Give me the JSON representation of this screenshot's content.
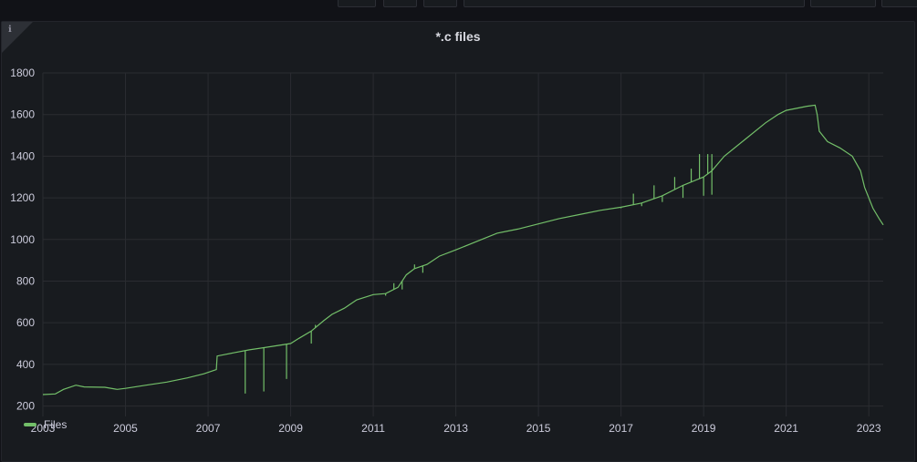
{
  "panel": {
    "info_icon": "info-icon",
    "title": "*.c files"
  },
  "legend": {
    "label": "Files",
    "color": "#73bf69"
  },
  "chart_data": {
    "type": "line",
    "title": "*.c files",
    "xlabel": "",
    "ylabel": "",
    "xlim": [
      2003.0,
      2023.35
    ],
    "ylim": [
      150,
      1800
    ],
    "grid": true,
    "legend_position": "bottom-left",
    "x_ticks": [
      "2003",
      "2005",
      "2007",
      "2009",
      "2011",
      "2013",
      "2015",
      "2017",
      "2019",
      "2021",
      "2023"
    ],
    "y_ticks": [
      "200",
      "400",
      "600",
      "800",
      "1000",
      "1200",
      "1400",
      "1600",
      "1800"
    ],
    "series": [
      {
        "name": "Files",
        "color": "#73bf69",
        "points": [
          [
            2003.0,
            255
          ],
          [
            2003.3,
            258
          ],
          [
            2003.5,
            280
          ],
          [
            2003.8,
            300
          ],
          [
            2004.0,
            292
          ],
          [
            2004.5,
            290
          ],
          [
            2004.8,
            280
          ],
          [
            2005.0,
            285
          ],
          [
            2005.5,
            300
          ],
          [
            2006.0,
            315
          ],
          [
            2006.5,
            335
          ],
          [
            2006.9,
            355
          ],
          [
            2007.2,
            375
          ],
          [
            2007.22,
            440
          ],
          [
            2007.6,
            455
          ],
          [
            2008.0,
            470
          ],
          [
            2008.5,
            485
          ],
          [
            2009.0,
            500
          ],
          [
            2009.2,
            525
          ],
          [
            2009.5,
            560
          ],
          [
            2009.8,
            610
          ],
          [
            2010.0,
            640
          ],
          [
            2010.3,
            670
          ],
          [
            2010.6,
            710
          ],
          [
            2011.0,
            735
          ],
          [
            2011.3,
            740
          ],
          [
            2011.6,
            770
          ],
          [
            2011.8,
            830
          ],
          [
            2012.0,
            860
          ],
          [
            2012.3,
            880
          ],
          [
            2012.6,
            920
          ],
          [
            2013.0,
            950
          ],
          [
            2013.5,
            990
          ],
          [
            2014.0,
            1030
          ],
          [
            2014.5,
            1050
          ],
          [
            2015.0,
            1075
          ],
          [
            2015.5,
            1100
          ],
          [
            2016.0,
            1120
          ],
          [
            2016.5,
            1140
          ],
          [
            2017.0,
            1155
          ],
          [
            2017.5,
            1175
          ],
          [
            2018.0,
            1210
          ],
          [
            2018.5,
            1260
          ],
          [
            2019.0,
            1300
          ],
          [
            2019.2,
            1330
          ],
          [
            2019.5,
            1400
          ],
          [
            2020.0,
            1480
          ],
          [
            2020.5,
            1560
          ],
          [
            2020.8,
            1600
          ],
          [
            2021.0,
            1620
          ],
          [
            2021.5,
            1640
          ],
          [
            2021.7,
            1645
          ],
          [
            2021.75,
            1600
          ],
          [
            2021.8,
            1520
          ],
          [
            2022.0,
            1470
          ],
          [
            2022.3,
            1440
          ],
          [
            2022.6,
            1400
          ],
          [
            2022.8,
            1330
          ],
          [
            2022.9,
            1250
          ],
          [
            2023.1,
            1150
          ],
          [
            2023.25,
            1100
          ],
          [
            2023.35,
            1070
          ]
        ],
        "dips": [
          [
            2007.9,
            260
          ],
          [
            2008.35,
            270
          ],
          [
            2008.9,
            330
          ],
          [
            2009.5,
            500
          ],
          [
            2011.3,
            730
          ],
          [
            2011.7,
            760
          ],
          [
            2012.2,
            840
          ],
          [
            2017.0,
            1150
          ],
          [
            2017.5,
            1160
          ],
          [
            2018.0,
            1180
          ],
          [
            2018.5,
            1200
          ],
          [
            2019.0,
            1210
          ],
          [
            2019.2,
            1215
          ]
        ],
        "spikes": [
          [
            2009.6,
            590
          ],
          [
            2010.0,
            640
          ],
          [
            2011.5,
            790
          ],
          [
            2012.0,
            880
          ],
          [
            2017.3,
            1220
          ],
          [
            2017.8,
            1260
          ],
          [
            2018.3,
            1300
          ],
          [
            2018.7,
            1340
          ],
          [
            2018.9,
            1410
          ],
          [
            2019.1,
            1410
          ],
          [
            2019.2,
            1410
          ]
        ]
      }
    ]
  }
}
